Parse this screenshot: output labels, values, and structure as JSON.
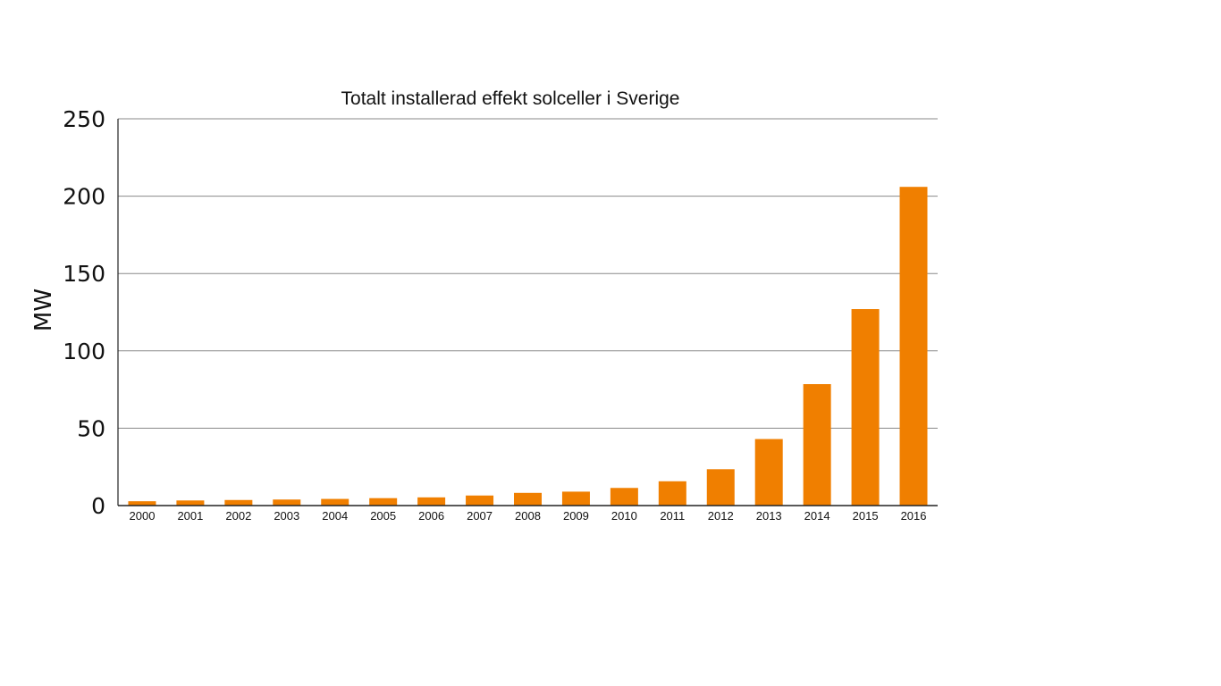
{
  "chart_data": {
    "type": "bar",
    "title": "Totalt installerad effekt solceller i Sverige",
    "xlabel": "",
    "ylabel": "MW",
    "ylim": [
      0,
      250
    ],
    "yticks": [
      0,
      50,
      100,
      150,
      200,
      250
    ],
    "grid": true,
    "bar_color": "#f07f00",
    "categories": [
      "2000",
      "2001",
      "2002",
      "2003",
      "2004",
      "2005",
      "2006",
      "2007",
      "2008",
      "2009",
      "2010",
      "2011",
      "2012",
      "2013",
      "2014",
      "2015",
      "2016"
    ],
    "values": [
      2.8,
      3.3,
      3.6,
      3.9,
      4.3,
      4.8,
      5.3,
      6.5,
      8.2,
      9.0,
      11.4,
      15.7,
      23.5,
      43.0,
      78.5,
      127.0,
      206.0
    ]
  }
}
